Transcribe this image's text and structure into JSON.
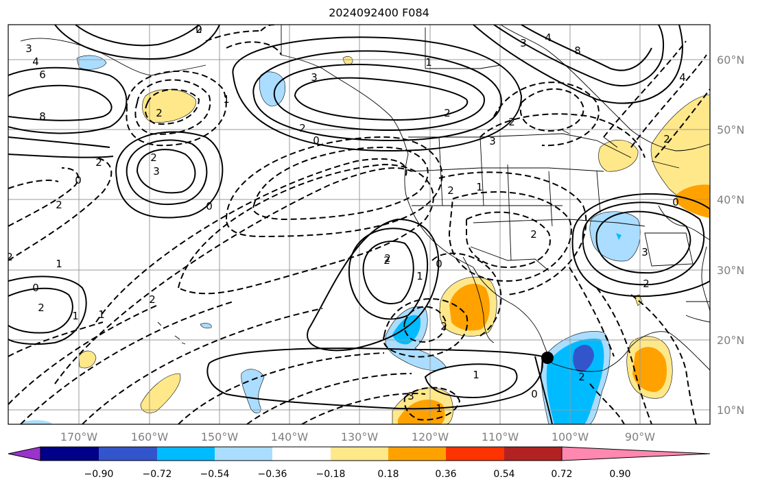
{
  "title": "2024092400 F084",
  "map": {
    "lon_labels": [
      "170°W",
      "160°W",
      "150°W",
      "140°W",
      "130°W",
      "120°W",
      "110°W",
      "100°W",
      "90°W"
    ],
    "lat_labels": [
      "60°N",
      "50°N",
      "40°N",
      "30°N",
      "20°N",
      "10°N"
    ]
  },
  "colorbar": {
    "colors": [
      "#9933cc",
      "#000088",
      "#3355cc",
      "#00bbff",
      "#aaddff",
      "#ffffff",
      "#ffe88a",
      "#ffa200",
      "#ff3300",
      "#b22222",
      "#ff88b0"
    ],
    "tick_labels": [
      "−0.90",
      "−0.72",
      "−0.54",
      "−0.36",
      "−0.18",
      "0.18",
      "0.36",
      "0.54",
      "0.72",
      "0.90"
    ]
  },
  "contour_labels": [
    "3",
    "4",
    "6",
    "8",
    "2",
    "0",
    "1",
    "2",
    "3",
    "3",
    "2",
    "0",
    "2",
    "2",
    "2",
    "1",
    "0",
    "2",
    "2",
    "1",
    "2",
    "0",
    "2",
    "2",
    "0",
    "1",
    "1",
    "2",
    "3",
    "2",
    "1",
    "0",
    "1",
    "2",
    "2",
    "1",
    "3",
    "1",
    "0",
    "2",
    "3",
    "8",
    "2",
    "4",
    "3",
    "2",
    "0",
    "4",
    "2"
  ],
  "contour_label_colors": "#000000",
  "marker": {
    "color": "#000000"
  }
}
